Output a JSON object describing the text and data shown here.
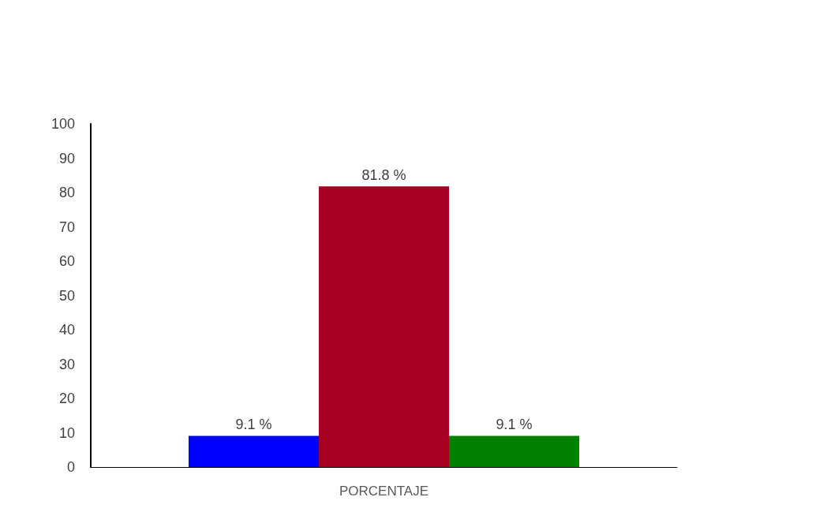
{
  "chart_data": {
    "type": "bar",
    "categories": [
      "PORCENTAJE"
    ],
    "series": [
      {
        "color": "#0000ff",
        "values": [
          9.1
        ],
        "value_labels": [
          "9.1 %"
        ]
      },
      {
        "color": "#a50021",
        "values": [
          81.8
        ],
        "value_labels": [
          "81.8 %"
        ]
      },
      {
        "color": "#008000",
        "values": [
          9.1
        ],
        "value_labels": [
          "9.1 %"
        ]
      }
    ],
    "ylim": [
      0,
      100
    ],
    "yticks": [
      0,
      10,
      20,
      30,
      40,
      50,
      60,
      70,
      80,
      90,
      100
    ],
    "grid": false
  }
}
